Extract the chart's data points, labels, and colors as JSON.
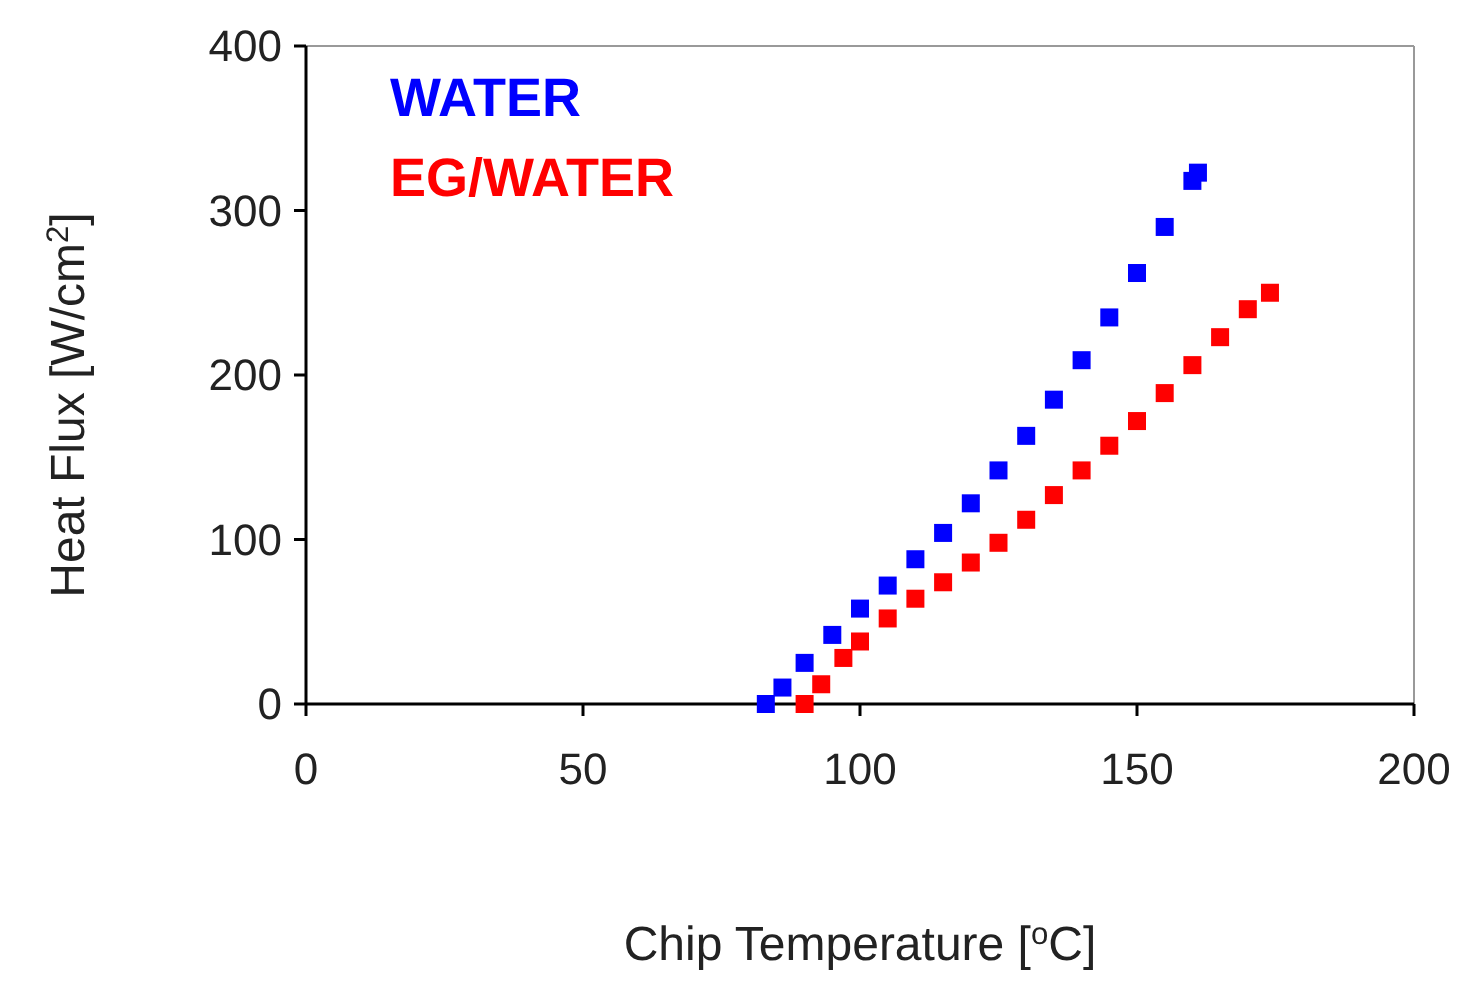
{
  "chart_data": {
    "type": "scatter",
    "xlabel": "Chip Temperature [$^{o}$C]",
    "ylabel": "Heat Flux [W/cm$^{2}$]",
    "xlim": [
      0,
      200
    ],
    "xticks": [
      0,
      50,
      100,
      150,
      200
    ],
    "ylim": [
      0,
      400
    ],
    "yticks": [
      0,
      100,
      200,
      300,
      400
    ],
    "grid": false,
    "legend": "top left",
    "marker": "square",
    "series": [
      {
        "name": "WATER",
        "color": "#0000ff",
        "x": [
          83,
          86,
          90,
          95,
          100,
          105,
          110,
          115,
          120,
          125,
          130,
          135,
          140,
          145,
          150,
          155,
          160,
          161
        ],
        "values": [
          0,
          10,
          25,
          42,
          58,
          72,
          88,
          104,
          122,
          142,
          163,
          185,
          209,
          235,
          262,
          290,
          318,
          323
        ]
      },
      {
        "name": "EG/WATER",
        "color": "#ff0000",
        "x": [
          90,
          93,
          97,
          100,
          105,
          110,
          115,
          120,
          125,
          130,
          135,
          140,
          145,
          150,
          155,
          160,
          165,
          170,
          174
        ],
        "values": [
          0,
          12,
          28,
          38,
          52,
          64,
          74,
          86,
          98,
          112,
          127,
          142,
          157,
          172,
          189,
          206,
          223,
          240,
          250
        ]
      }
    ]
  }
}
